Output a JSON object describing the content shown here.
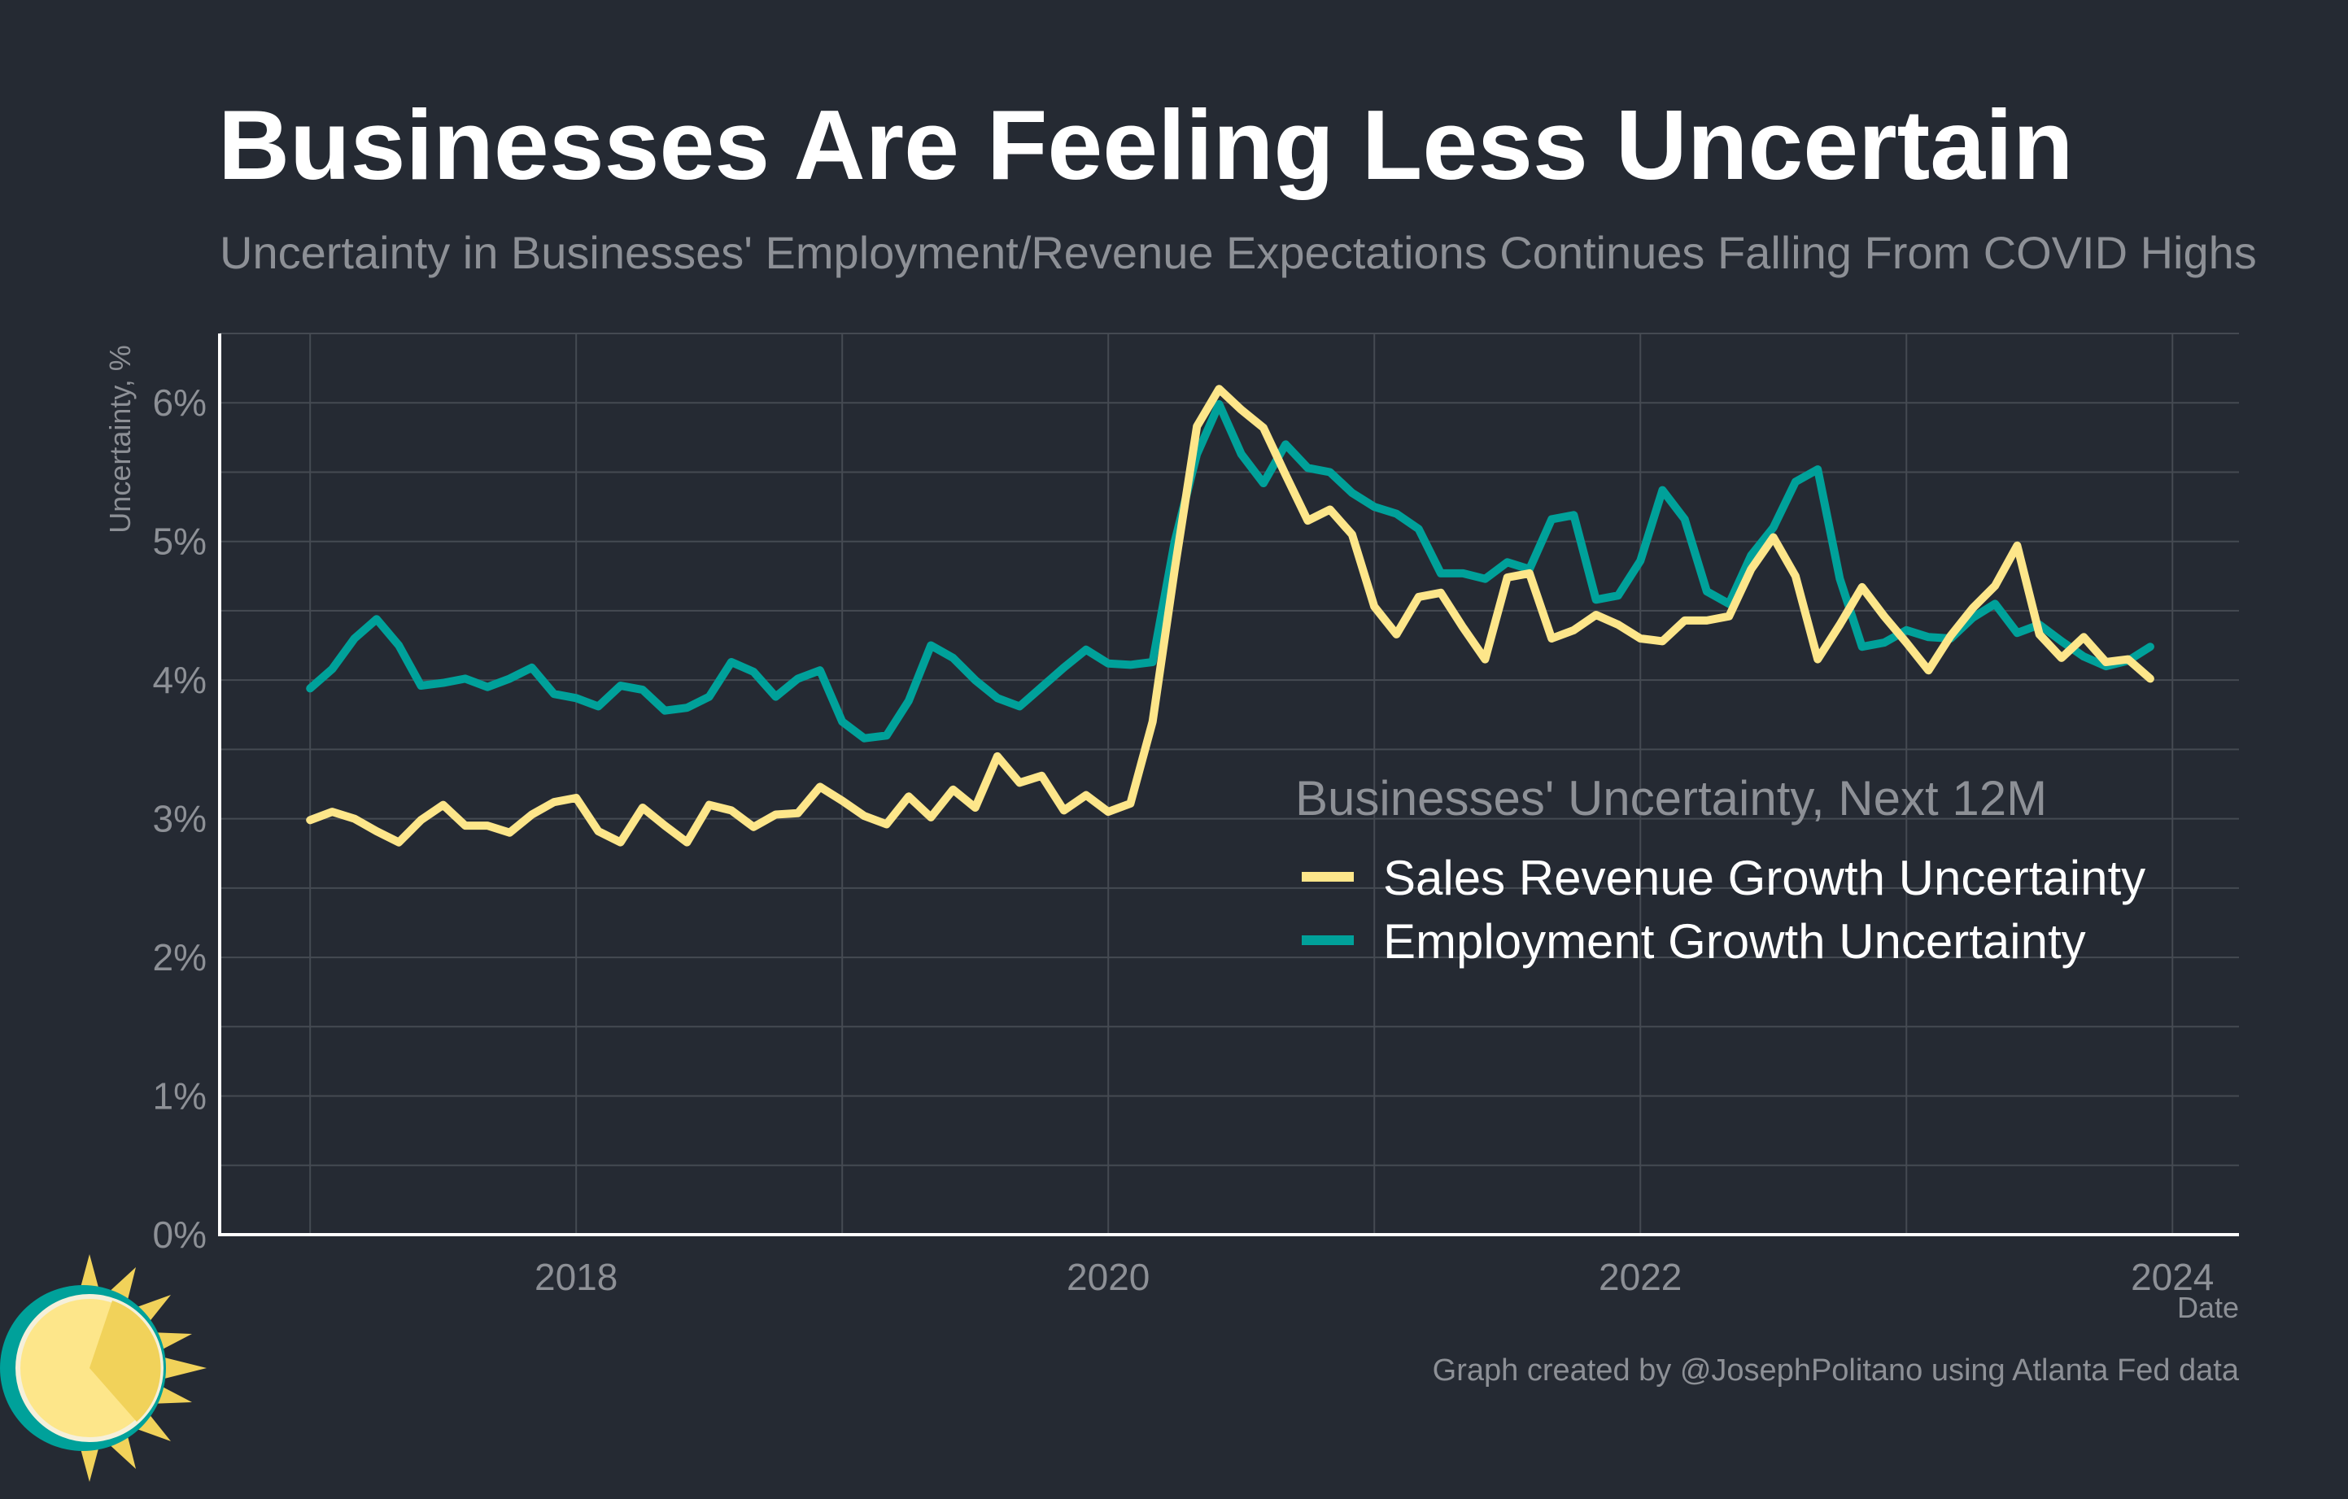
{
  "title": "Businesses Are Feeling Less Uncertain",
  "subtitle": "Uncertainty in Businesses' Employment/Revenue Expectations Continues Falling From COVID Highs",
  "caption": "Graph created by @JosephPolitano using Atlanta Fed data",
  "colors": {
    "background": "#252a33",
    "sales": "#fde68a",
    "employment": "#00a19a",
    "grid": "#454a52",
    "text": "#8d9096"
  },
  "logo": {
    "icon": "sun-icon"
  },
  "chart_data": {
    "type": "line",
    "title": "Businesses Are Feeling Less Uncertain",
    "xlabel": "Date",
    "ylabel": "Uncertainty, %",
    "xlim": [
      2016.66,
      2024.25
    ],
    "ylim": [
      0,
      6.5
    ],
    "x_ticks": [
      2018,
      2020,
      2022,
      2024
    ],
    "x_tick_labels": [
      "2018",
      "2020",
      "2022",
      "2024"
    ],
    "y_ticks": [
      0,
      1,
      2,
      3,
      4,
      5,
      6
    ],
    "y_tick_labels": [
      "0%",
      "1%",
      "2%",
      "3%",
      "4%",
      "5%",
      "6%"
    ],
    "grid": true,
    "legend": {
      "title": "Businesses' Uncertainty, Next 12M",
      "position": "center-right"
    },
    "x_start": 2017.0,
    "x_step": 0.08333,
    "series": [
      {
        "name": "Sales Revenue Growth Uncertainty",
        "color": "#fde68a",
        "values": [
          2.99,
          3.05,
          3.0,
          2.91,
          2.83,
          2.99,
          3.1,
          2.95,
          2.95,
          2.9,
          3.03,
          3.12,
          3.15,
          2.91,
          2.83,
          3.08,
          2.95,
          2.83,
          3.1,
          3.06,
          2.94,
          3.03,
          3.04,
          3.23,
          3.13,
          3.02,
          2.96,
          3.16,
          3.01,
          3.21,
          3.08,
          3.45,
          3.26,
          3.31,
          3.06,
          3.17,
          3.05,
          3.11,
          3.7,
          4.8,
          5.83,
          6.1,
          5.95,
          5.82,
          5.48,
          5.15,
          5.23,
          5.05,
          4.53,
          4.33,
          4.6,
          4.63,
          4.38,
          4.15,
          4.74,
          4.77,
          4.3,
          4.36,
          4.47,
          4.4,
          4.3,
          4.28,
          4.43,
          4.43,
          4.46,
          4.8,
          5.03,
          4.75,
          4.15,
          4.4,
          4.67,
          4.46,
          4.27,
          4.07,
          4.32,
          4.52,
          4.68,
          4.97,
          4.33,
          4.16,
          4.31,
          4.13,
          4.15,
          4.01
        ]
      },
      {
        "name": "Employment Growth Uncertainty",
        "color": "#00a19a",
        "values": [
          3.94,
          4.08,
          4.3,
          4.44,
          4.25,
          3.96,
          3.98,
          4.01,
          3.95,
          4.01,
          4.09,
          3.9,
          3.87,
          3.81,
          3.96,
          3.93,
          3.78,
          3.8,
          3.88,
          4.13,
          4.06,
          3.88,
          4.01,
          4.07,
          3.7,
          3.58,
          3.6,
          3.85,
          4.25,
          4.16,
          4.0,
          3.87,
          3.81,
          3.95,
          4.09,
          4.22,
          4.12,
          4.11,
          4.13,
          5.0,
          5.63,
          5.99,
          5.63,
          5.42,
          5.7,
          5.53,
          5.5,
          5.35,
          5.25,
          5.2,
          5.09,
          4.77,
          4.77,
          4.73,
          4.85,
          4.8,
          5.16,
          5.19,
          4.58,
          4.61,
          4.86,
          5.37,
          5.16,
          4.64,
          4.55,
          4.9,
          5.1,
          5.43,
          5.52,
          4.73,
          4.24,
          4.27,
          4.36,
          4.31,
          4.3,
          4.45,
          4.55,
          4.34,
          4.4,
          4.28,
          4.17,
          4.1,
          4.14,
          4.24
        ]
      }
    ]
  }
}
